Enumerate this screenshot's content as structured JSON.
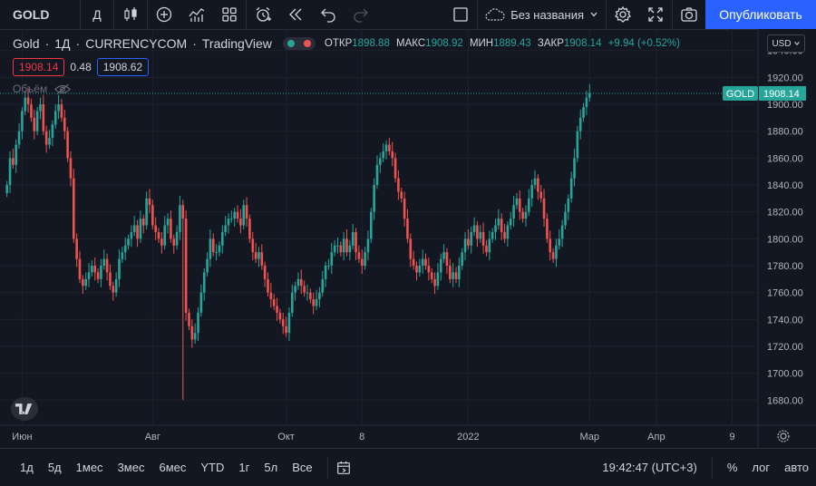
{
  "toolbar": {
    "symbol": "GOLD",
    "interval": "Д",
    "layout_name": "Без названия",
    "publish_label": "Опубликовать"
  },
  "legend": {
    "title_name": "Gold",
    "title_interval": "1Д",
    "title_source": "CURRENCYCOM",
    "title_platform": "TradingView",
    "open_label": "ОТКР",
    "open_value": "1898.88",
    "high_label": "МАКС",
    "high_value": "1908.92",
    "low_label": "МИН",
    "low_value": "1889.43",
    "close_label": "ЗАКР",
    "close_value": "1908.14",
    "change": "+9.94 (+0.52%)",
    "bid": "1908.14",
    "spread": "0.48",
    "ask": "1908.62",
    "volume_label": "Объём"
  },
  "currency": "USD",
  "bottom": {
    "periods": [
      "1д",
      "5д",
      "1мес",
      "3мес",
      "6мес",
      "YTD",
      "1г",
      "5л",
      "Все"
    ],
    "time": "19:42:47 (UTC+3)",
    "percent": "%",
    "log": "лог",
    "auto": "авто"
  },
  "colors": {
    "up": "#26a69a",
    "down": "#ef5350",
    "accent": "#2962ff",
    "background": "#131722"
  },
  "chart_data": {
    "type": "candlestick",
    "symbol_label": "GOLD",
    "last_price": 1908.14,
    "ylim": [
      1662,
      1956
    ],
    "y_ticks": [
      1680,
      1700,
      1720,
      1740,
      1760,
      1780,
      1800,
      1820,
      1840,
      1860,
      1880,
      1900,
      1920,
      1940
    ],
    "x_ticks": [
      {
        "label": "Июн",
        "index": 5
      },
      {
        "label": "Авг",
        "index": 48
      },
      {
        "label": "Окт",
        "index": 92
      },
      {
        "label": "8",
        "index": 117
      },
      {
        "label": "2022",
        "index": 152
      },
      {
        "label": "Мар",
        "index": 192
      },
      {
        "label": "Апр",
        "index": 214
      },
      {
        "label": "9",
        "index": 239
      }
    ],
    "total_slots": 248,
    "closes": [
      1840,
      1860,
      1855,
      1870,
      1880,
      1895,
      1905,
      1900,
      1890,
      1880,
      1895,
      1900,
      1880,
      1870,
      1875,
      1885,
      1895,
      1900,
      1890,
      1880,
      1860,
      1845,
      1800,
      1785,
      1770,
      1765,
      1770,
      1775,
      1780,
      1775,
      1770,
      1780,
      1785,
      1775,
      1765,
      1760,
      1770,
      1785,
      1790,
      1795,
      1800,
      1805,
      1810,
      1800,
      1815,
      1810,
      1830,
      1825,
      1810,
      1805,
      1800,
      1795,
      1810,
      1815,
      1800,
      1795,
      1805,
      1825,
      1815,
      1745,
      1735,
      1725,
      1730,
      1745,
      1760,
      1775,
      1785,
      1800,
      1790,
      1790,
      1795,
      1805,
      1810,
      1815,
      1815,
      1820,
      1815,
      1810,
      1825,
      1815,
      1800,
      1790,
      1785,
      1790,
      1780,
      1770,
      1760,
      1755,
      1750,
      1745,
      1740,
      1735,
      1730,
      1745,
      1760,
      1765,
      1770,
      1765,
      1760,
      1760,
      1755,
      1750,
      1755,
      1760,
      1770,
      1780,
      1780,
      1790,
      1795,
      1795,
      1790,
      1800,
      1790,
      1795,
      1805,
      1790,
      1785,
      1780,
      1790,
      1800,
      1820,
      1840,
      1855,
      1860,
      1865,
      1870,
      1865,
      1860,
      1845,
      1835,
      1830,
      1815,
      1800,
      1785,
      1780,
      1775,
      1780,
      1785,
      1780,
      1775,
      1770,
      1765,
      1775,
      1785,
      1790,
      1780,
      1770,
      1775,
      1770,
      1780,
      1790,
      1800,
      1795,
      1805,
      1810,
      1800,
      1805,
      1795,
      1790,
      1800,
      1805,
      1810,
      1815,
      1805,
      1800,
      1810,
      1815,
      1825,
      1830,
      1820,
      1815,
      1820,
      1830,
      1840,
      1845,
      1835,
      1830,
      1815,
      1800,
      1790,
      1785,
      1795,
      1800,
      1810,
      1820,
      1830,
      1845,
      1860,
      1880,
      1890,
      1898,
      1905,
      1908
    ],
    "spikes": [
      {
        "index": 58,
        "low": 1680
      }
    ]
  }
}
